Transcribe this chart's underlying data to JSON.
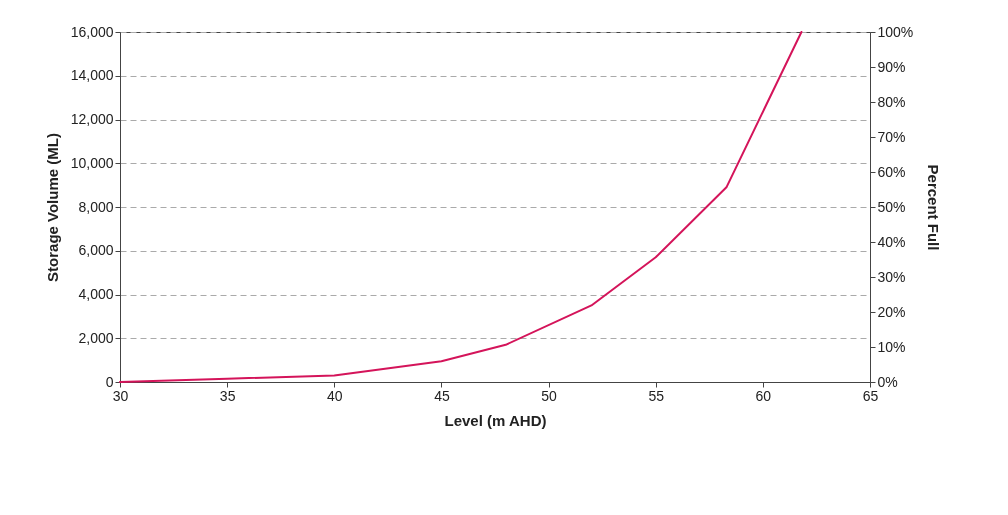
{
  "chart_data": {
    "type": "line",
    "xlabel": "Level (m AHD)",
    "ylabel": "Storage Volume (ML)",
    "y2label": "Percent Full",
    "x": [
      30,
      35,
      40,
      45,
      48,
      52,
      55,
      58.3,
      61.8
    ],
    "series": [
      {
        "color": "#d4145a",
        "values": [
          0,
          150,
          300,
          950,
          1700,
          3500,
          5700,
          8900,
          16000
        ]
      }
    ],
    "xlim": [
      30,
      65
    ],
    "xticks": [
      30,
      35,
      40,
      45,
      50,
      55,
      60,
      65
    ],
    "ylim": [
      0,
      16000
    ],
    "yticks": [
      {
        "value": 0,
        "label": "0"
      },
      {
        "value": 2000,
        "label": "2,000"
      },
      {
        "value": 4000,
        "label": "4,000"
      },
      {
        "value": 6000,
        "label": "6,000"
      },
      {
        "value": 8000,
        "label": "8,000"
      },
      {
        "value": 10000,
        "label": "10,000"
      },
      {
        "value": 12000,
        "label": "12,000"
      },
      {
        "value": 14000,
        "label": "14,000"
      },
      {
        "value": 16000,
        "label": "16,000"
      }
    ],
    "y2lim": [
      0,
      100
    ],
    "y2ticks": [
      {
        "value": 0,
        "label": "0%"
      },
      {
        "value": 10,
        "label": "10%"
      },
      {
        "value": 20,
        "label": "20%"
      },
      {
        "value": 30,
        "label": "30%"
      },
      {
        "value": 40,
        "label": "40%"
      },
      {
        "value": 50,
        "label": "50%"
      },
      {
        "value": 60,
        "label": "60%"
      },
      {
        "value": 70,
        "label": "70%"
      },
      {
        "value": 80,
        "label": "80%"
      },
      {
        "value": 90,
        "label": "90%"
      },
      {
        "value": 100,
        "label": "100%"
      }
    ],
    "grid": "y",
    "marker": "none",
    "line_style": "solid"
  }
}
